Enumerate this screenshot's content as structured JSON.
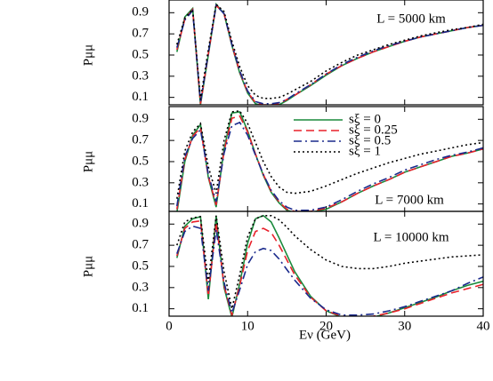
{
  "chart_data": [
    {
      "type": "line",
      "annotation": "L = 5000 km",
      "y_label": "Pμμ",
      "x": [
        1,
        2,
        3,
        4,
        5,
        6,
        7,
        8,
        9,
        10,
        11,
        12,
        13,
        14,
        15,
        16,
        18,
        20,
        22,
        24,
        26,
        28,
        30,
        32,
        34,
        36,
        38,
        40
      ],
      "xlim": [
        0,
        40
      ],
      "xticks": [
        0,
        10,
        20,
        30,
        40
      ],
      "ylim": [
        0.03,
        1.02
      ],
      "yticks": [
        0.1,
        0.3,
        0.5,
        0.7,
        0.9
      ],
      "series": [
        {
          "color": "#1a8a3c",
          "dash": "solid",
          "values": [
            0.53,
            0.86,
            0.94,
            0.03,
            0.5,
            0.98,
            0.89,
            0.59,
            0.33,
            0.14,
            0.04,
            0.02,
            0.02,
            0.03,
            0.07,
            0.12,
            0.21,
            0.31,
            0.4,
            0.47,
            0.53,
            0.58,
            0.63,
            0.67,
            0.7,
            0.73,
            0.76,
            0.78
          ]
        },
        {
          "color": "#e8202a",
          "dash": "dashed",
          "values": [
            0.55,
            0.84,
            0.93,
            0.04,
            0.51,
            0.97,
            0.89,
            0.6,
            0.34,
            0.15,
            0.05,
            0.03,
            0.03,
            0.04,
            0.08,
            0.12,
            0.22,
            0.32,
            0.4,
            0.47,
            0.53,
            0.58,
            0.63,
            0.67,
            0.7,
            0.73,
            0.76,
            0.78
          ]
        },
        {
          "color": "#1a2a8c",
          "dash": "dashdot",
          "values": [
            0.57,
            0.83,
            0.92,
            0.05,
            0.52,
            0.97,
            0.89,
            0.6,
            0.35,
            0.16,
            0.06,
            0.04,
            0.04,
            0.05,
            0.08,
            0.13,
            0.22,
            0.32,
            0.41,
            0.48,
            0.54,
            0.59,
            0.63,
            0.67,
            0.7,
            0.73,
            0.76,
            0.78
          ]
        },
        {
          "color": "#000000",
          "dash": "dotted",
          "values": [
            0.6,
            0.85,
            0.93,
            0.08,
            0.55,
            0.98,
            0.91,
            0.63,
            0.39,
            0.21,
            0.12,
            0.09,
            0.09,
            0.1,
            0.13,
            0.17,
            0.25,
            0.35,
            0.43,
            0.5,
            0.55,
            0.6,
            0.64,
            0.68,
            0.71,
            0.74,
            0.76,
            0.79
          ]
        }
      ]
    },
    {
      "type": "line",
      "annotation": "L = 7000 km",
      "y_label": "Pμμ",
      "x": [
        1,
        2,
        3,
        4,
        5,
        6,
        7,
        8,
        9,
        10,
        11,
        12,
        13,
        14,
        15,
        16,
        18,
        20,
        22,
        24,
        26,
        28,
        30,
        32,
        34,
        36,
        38,
        40
      ],
      "xlim": [
        0,
        40
      ],
      "xticks": [
        0,
        10,
        20,
        30,
        40
      ],
      "ylim": [
        0.03,
        1.02
      ],
      "yticks": [
        0.1,
        0.3,
        0.5,
        0.7,
        0.9
      ],
      "series": [
        {
          "name": "sξ = 0",
          "color": "#1a8a3c",
          "dash": "solid",
          "values": [
            0.02,
            0.5,
            0.75,
            0.85,
            0.35,
            0.07,
            0.62,
            0.96,
            0.97,
            0.79,
            0.57,
            0.37,
            0.21,
            0.11,
            0.04,
            0.02,
            0.02,
            0.05,
            0.12,
            0.2,
            0.27,
            0.33,
            0.4,
            0.45,
            0.5,
            0.55,
            0.58,
            0.62
          ]
        },
        {
          "name": "sξ = 0.25",
          "color": "#e8202a",
          "dash": "dashed",
          "values": [
            0.05,
            0.52,
            0.74,
            0.82,
            0.36,
            0.09,
            0.6,
            0.91,
            0.93,
            0.78,
            0.57,
            0.38,
            0.22,
            0.12,
            0.05,
            0.03,
            0.03,
            0.06,
            0.12,
            0.2,
            0.27,
            0.33,
            0.4,
            0.45,
            0.5,
            0.55,
            0.58,
            0.62
          ]
        },
        {
          "name": "sξ = 0.5",
          "color": "#1a2a8c",
          "dash": "dashdot",
          "values": [
            0.08,
            0.55,
            0.72,
            0.8,
            0.38,
            0.12,
            0.58,
            0.84,
            0.87,
            0.75,
            0.56,
            0.38,
            0.23,
            0.13,
            0.07,
            0.04,
            0.04,
            0.07,
            0.14,
            0.22,
            0.29,
            0.35,
            0.42,
            0.47,
            0.52,
            0.56,
            0.59,
            0.63
          ]
        },
        {
          "name": "sξ = 1",
          "color": "#000000",
          "dash": "dotted",
          "values": [
            0.15,
            0.6,
            0.78,
            0.86,
            0.45,
            0.2,
            0.7,
            0.97,
            0.98,
            0.86,
            0.68,
            0.5,
            0.36,
            0.26,
            0.21,
            0.2,
            0.22,
            0.27,
            0.33,
            0.39,
            0.44,
            0.49,
            0.53,
            0.57,
            0.6,
            0.63,
            0.66,
            0.68
          ]
        }
      ]
    },
    {
      "type": "line",
      "annotation": "L = 10000 km",
      "y_label": "Pμμ",
      "x_label": "Eν (GeV)",
      "x": [
        1,
        2,
        3,
        4,
        5,
        6,
        7,
        8,
        9,
        10,
        11,
        12,
        13,
        14,
        15,
        16,
        18,
        20,
        22,
        24,
        26,
        28,
        30,
        32,
        34,
        36,
        38,
        40
      ],
      "xlim": [
        0,
        40
      ],
      "xticks": [
        0,
        10,
        20,
        30,
        40
      ],
      "ylim": [
        0.03,
        1.02
      ],
      "yticks": [
        0.1,
        0.3,
        0.5,
        0.7,
        0.9
      ],
      "series": [
        {
          "color": "#1a8a3c",
          "dash": "solid",
          "values": [
            0.58,
            0.88,
            0.95,
            0.97,
            0.19,
            0.98,
            0.3,
            0.02,
            0.34,
            0.72,
            0.95,
            0.98,
            0.92,
            0.77,
            0.61,
            0.45,
            0.22,
            0.08,
            0.02,
            0.02,
            0.02,
            0.06,
            0.11,
            0.16,
            0.21,
            0.27,
            0.32,
            0.36
          ]
        },
        {
          "color": "#e8202a",
          "dash": "dashed",
          "values": [
            0.6,
            0.86,
            0.92,
            0.93,
            0.22,
            0.92,
            0.32,
            0.04,
            0.32,
            0.65,
            0.83,
            0.86,
            0.82,
            0.7,
            0.56,
            0.42,
            0.21,
            0.08,
            0.03,
            0.02,
            0.03,
            0.06,
            0.1,
            0.15,
            0.2,
            0.25,
            0.29,
            0.33
          ]
        },
        {
          "color": "#1a2a8c",
          "dash": "dashdot",
          "values": [
            0.62,
            0.83,
            0.88,
            0.86,
            0.27,
            0.85,
            0.35,
            0.06,
            0.28,
            0.52,
            0.64,
            0.67,
            0.65,
            0.57,
            0.47,
            0.37,
            0.2,
            0.09,
            0.04,
            0.04,
            0.05,
            0.08,
            0.12,
            0.17,
            0.22,
            0.27,
            0.34,
            0.4
          ]
        },
        {
          "color": "#000000",
          "dash": "dotted",
          "values": [
            0.7,
            0.92,
            0.96,
            0.97,
            0.35,
            0.98,
            0.45,
            0.1,
            0.42,
            0.78,
            0.95,
            0.98,
            0.98,
            0.94,
            0.87,
            0.79,
            0.66,
            0.56,
            0.5,
            0.48,
            0.48,
            0.5,
            0.53,
            0.55,
            0.57,
            0.59,
            0.6,
            0.61
          ]
        }
      ]
    }
  ]
}
